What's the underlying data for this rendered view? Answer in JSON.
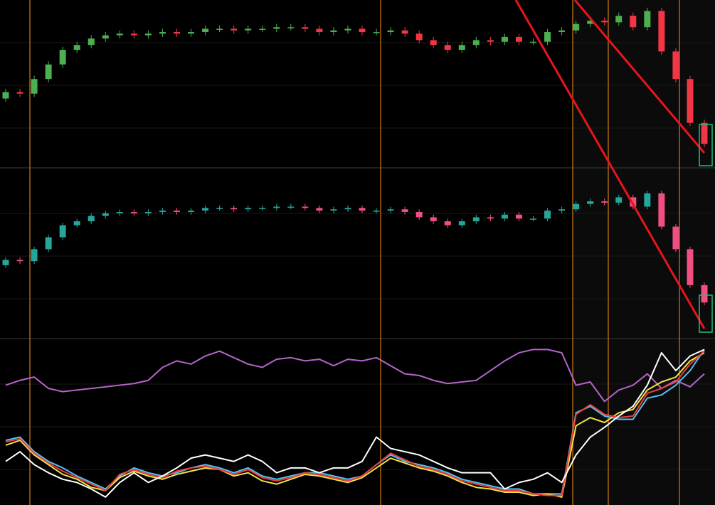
{
  "chart_data": [
    {
      "type": "candlestick",
      "ylim": [
        0,
        100
      ],
      "up_color": "#4caf50",
      "down_color": "#f23645",
      "open": [
        41,
        45,
        44,
        53,
        62,
        71,
        74,
        78,
        80,
        81,
        80,
        81,
        82,
        81,
        82,
        84,
        84,
        83,
        84,
        84,
        85,
        85,
        84,
        82,
        83,
        84,
        82,
        82,
        83,
        81,
        77,
        74,
        71,
        74,
        77,
        76,
        79,
        76,
        76,
        82,
        83,
        87,
        89,
        88,
        92,
        85,
        95,
        70,
        53,
        26
      ],
      "high": [
        47,
        47,
        55,
        64,
        73,
        76,
        80,
        82,
        83,
        83,
        83,
        84,
        84,
        84,
        86,
        86,
        86,
        86,
        86,
        87,
        87,
        87,
        86,
        85,
        86,
        86,
        84,
        85,
        85,
        83,
        79,
        76,
        76,
        79,
        79,
        81,
        81,
        78,
        84,
        85,
        89,
        91,
        91,
        94,
        94,
        97,
        97,
        72,
        55,
        28
      ],
      "low": [
        39,
        42,
        42,
        51,
        60,
        69,
        72,
        76,
        78,
        78,
        78,
        79,
        79,
        79,
        80,
        82,
        81,
        81,
        82,
        82,
        83,
        82,
        80,
        80,
        81,
        80,
        80,
        80,
        79,
        75,
        72,
        69,
        69,
        72,
        74,
        74,
        74,
        74,
        74,
        80,
        81,
        85,
        86,
        86,
        83,
        83,
        68,
        51,
        24,
        11
      ],
      "close": [
        45,
        44,
        53,
        62,
        71,
        74,
        78,
        80,
        81,
        80,
        81,
        82,
        81,
        82,
        84,
        84,
        83,
        84,
        84,
        85,
        85,
        84,
        82,
        83,
        84,
        82,
        82,
        83,
        81,
        77,
        74,
        71,
        74,
        77,
        76,
        79,
        76,
        76,
        82,
        83,
        87,
        89,
        88,
        92,
        85,
        95,
        70,
        53,
        26,
        13
      ]
    },
    {
      "type": "candlestick",
      "ylim": [
        -12,
        112
      ],
      "up_color": "#26a69a",
      "down_color": "#ef5081",
      "open": [
        41,
        45,
        44,
        53,
        62,
        71,
        74,
        78,
        80,
        81,
        80,
        81,
        82,
        81,
        82,
        84,
        84,
        83,
        84,
        84,
        85,
        85,
        84,
        82,
        83,
        84,
        82,
        82,
        83,
        81,
        77,
        74,
        71,
        74,
        77,
        76,
        79,
        76,
        76,
        82,
        83,
        87,
        89,
        88,
        92,
        85,
        95,
        70,
        53,
        26
      ],
      "high": [
        47,
        47,
        55,
        64,
        73,
        76,
        80,
        82,
        83,
        83,
        83,
        84,
        84,
        84,
        86,
        86,
        86,
        86,
        86,
        87,
        87,
        87,
        86,
        85,
        86,
        86,
        84,
        85,
        85,
        83,
        79,
        76,
        76,
        79,
        79,
        81,
        81,
        78,
        84,
        85,
        89,
        91,
        91,
        94,
        94,
        97,
        97,
        72,
        55,
        28
      ],
      "low": [
        39,
        42,
        42,
        51,
        60,
        69,
        72,
        76,
        78,
        78,
        78,
        79,
        79,
        79,
        80,
        82,
        81,
        81,
        82,
        82,
        83,
        82,
        80,
        80,
        81,
        80,
        80,
        80,
        79,
        75,
        72,
        69,
        69,
        72,
        74,
        74,
        74,
        74,
        74,
        80,
        81,
        85,
        86,
        86,
        83,
        83,
        68,
        51,
        24,
        11
      ],
      "close": [
        45,
        44,
        53,
        62,
        71,
        74,
        78,
        80,
        81,
        80,
        81,
        82,
        81,
        82,
        84,
        84,
        83,
        84,
        84,
        85,
        85,
        84,
        82,
        83,
        84,
        82,
        82,
        83,
        81,
        77,
        74,
        71,
        74,
        77,
        76,
        79,
        76,
        76,
        82,
        83,
        87,
        89,
        88,
        92,
        85,
        95,
        70,
        53,
        26,
        13
      ]
    },
    {
      "type": "line",
      "ylim": [
        0,
        100
      ],
      "series": [
        {
          "color": "#b565c9",
          "values": [
            73,
            76,
            78,
            71,
            69,
            70,
            71,
            72,
            73,
            74,
            76,
            84,
            88,
            86,
            91,
            94,
            90,
            86,
            84,
            89,
            90,
            88,
            89,
            85,
            89,
            88,
            90,
            85,
            80,
            79,
            76,
            74,
            75,
            76,
            82,
            88,
            93,
            95,
            95,
            93,
            73,
            75,
            63,
            70,
            73,
            80,
            71,
            76,
            72,
            80
          ]
        },
        {
          "color": "#4fc3f7",
          "values": [
            39,
            41,
            32,
            26,
            22,
            17,
            13,
            9,
            17,
            22,
            19,
            17,
            19,
            22,
            24,
            22,
            19,
            22,
            17,
            15,
            17,
            19,
            19,
            17,
            15,
            17,
            24,
            30,
            26,
            24,
            22,
            19,
            15,
            13,
            11,
            9,
            9,
            6,
            6,
            6,
            56,
            60,
            54,
            52,
            52,
            65,
            67,
            73,
            82,
            95
          ]
        },
        {
          "color": "#f5e342",
          "values": [
            36,
            39,
            30,
            24,
            18,
            15,
            10,
            8,
            16,
            20,
            17,
            15,
            18,
            20,
            22,
            21,
            17,
            19,
            14,
            12,
            15,
            18,
            17,
            15,
            13,
            16,
            22,
            28,
            25,
            22,
            20,
            17,
            13,
            10,
            9,
            7,
            7,
            5,
            6,
            4,
            48,
            53,
            50,
            56,
            58,
            70,
            75,
            78,
            88,
            93
          ]
        },
        {
          "color": "#ef3e3e",
          "values": [
            38,
            40,
            31,
            25,
            20,
            16,
            12,
            8,
            18,
            21,
            18,
            16,
            20,
            22,
            23,
            21,
            18,
            21,
            16,
            14,
            16,
            19,
            18,
            16,
            14,
            17,
            24,
            31,
            27,
            23,
            21,
            18,
            14,
            12,
            10,
            8,
            8,
            6,
            5,
            5,
            55,
            61,
            55,
            53,
            54,
            68,
            71,
            75,
            86,
            94
          ]
        },
        {
          "color": "#ffffff",
          "values": [
            26,
            32,
            24,
            19,
            15,
            13,
            9,
            4,
            13,
            19,
            13,
            17,
            22,
            28,
            30,
            28,
            26,
            30,
            26,
            19,
            22,
            22,
            19,
            22,
            22,
            26,
            41,
            34,
            32,
            30,
            26,
            22,
            19,
            19,
            19,
            9,
            13,
            15,
            19,
            13,
            30,
            41,
            47,
            54,
            60,
            73,
            93,
            82,
            91,
            95
          ]
        }
      ]
    }
  ]
}
